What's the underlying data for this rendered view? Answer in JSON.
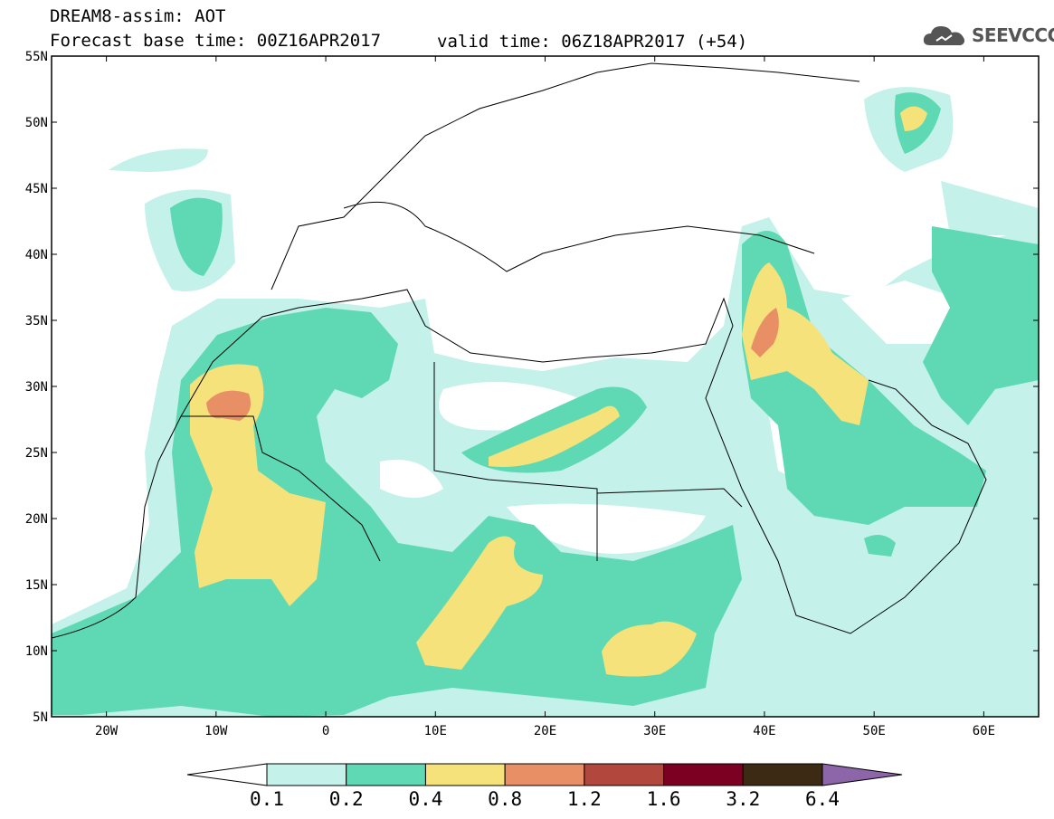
{
  "header": {
    "model_line": "DREAM8-assim: AOT",
    "base_line": "Forecast base time: 00Z16APR2017",
    "valid_line": "valid time: 06Z18APR2017 (+54)"
  },
  "logo": {
    "text": "SEEVCCC",
    "icon": "cloud-icon"
  },
  "map": {
    "lat_labels": [
      "55N",
      "50N",
      "45N",
      "40N",
      "35N",
      "30N",
      "25N",
      "20N",
      "15N",
      "10N",
      "5N"
    ],
    "lon_labels": [
      "20W",
      "10W",
      "0",
      "10E",
      "20E",
      "30E",
      "40E",
      "50E",
      "60E"
    ],
    "lat_range": [
      5,
      55
    ],
    "lon_range": [
      -25,
      65
    ]
  },
  "legend": {
    "levels": [
      "0.1",
      "0.2",
      "0.4",
      "0.8",
      "1.2",
      "1.6",
      "3.2",
      "6.4"
    ],
    "colors": [
      "#ffffff",
      "#c4f1ea",
      "#5ed9b4",
      "#f5e27a",
      "#e88f66",
      "#b1473d",
      "#7b0022",
      "#3d2a14",
      "#8c66a8"
    ]
  }
}
